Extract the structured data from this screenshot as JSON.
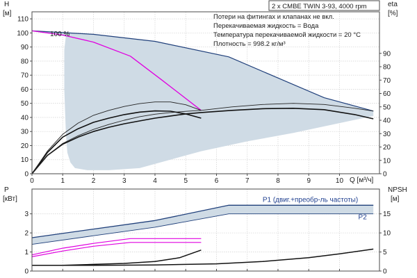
{
  "title": "2 x CMBE TWIN 3-93, 4000 rpm",
  "info": [
    "Потери на фитингах и клапанах не вкл.",
    "Перекачиваемая жидкость = Вода",
    "Температура перекачиваемой жидкости = 20 °C",
    "Плотность = 998.2 кг/м³"
  ],
  "colors": {
    "envelope_fill": "#cfdbe5",
    "envelope_edge": "#1f3f7a",
    "qh_curve": "#111111",
    "highlight": "#e000e0",
    "eta_curve": "#222222",
    "series_label": "#1f3f8f"
  },
  "chart_data": [
    {
      "type": "line",
      "name": "QH",
      "ylabel": "H",
      "yunit": "[м]",
      "y2label": "eta",
      "y2unit": "[%]",
      "xlabel": "Q [м³/ч]",
      "xlim": [
        0,
        11.3
      ],
      "ylim": [
        0,
        115
      ],
      "yticks": [
        0,
        10,
        20,
        30,
        40,
        50,
        60,
        70,
        80,
        90,
        100,
        110
      ],
      "y2ticks": [
        0,
        10,
        20,
        30,
        40,
        50,
        60,
        70,
        80,
        90
      ],
      "xticks": [
        0,
        1,
        2,
        3,
        4,
        5,
        6,
        7,
        8,
        9,
        10
      ],
      "grid": true,
      "annotation": "100 %",
      "envelope": {
        "upper": [
          [
            0,
            101.5
          ],
          [
            2,
            99
          ],
          [
            4,
            94
          ],
          [
            6.4,
            83
          ],
          [
            8,
            68
          ],
          [
            9.5,
            54
          ],
          [
            11.1,
            44.5
          ]
        ],
        "lower": [
          [
            11.1,
            41
          ],
          [
            10,
            36
          ],
          [
            8.5,
            29
          ],
          [
            7,
            23
          ],
          [
            5.5,
            16
          ],
          [
            4.5,
            10
          ],
          [
            3.5,
            4
          ],
          [
            2.5,
            2.5
          ],
          [
            1.8,
            2.5
          ],
          [
            1.4,
            4
          ],
          [
            1.25,
            8
          ],
          [
            1.15,
            15
          ],
          [
            1.1,
            30
          ],
          [
            1.05,
            60
          ],
          [
            1.05,
            88
          ],
          [
            1.1,
            97.5
          ],
          [
            0,
            101.5
          ]
        ]
      },
      "lines": [
        {
          "points": [
            [
              0,
              101.5
            ],
            [
              1,
              98.5
            ],
            [
              2,
              93.5
            ],
            [
              3.2,
              83.5
            ],
            [
              4.2,
              67
            ],
            [
              5.5,
              45
            ]
          ],
          "style": "highlight"
        },
        {
          "points": [
            [
              0,
              0
            ],
            [
              0.5,
              13
            ],
            [
              1,
              21
            ],
            [
              1.5,
              26
            ],
            [
              2,
              30
            ],
            [
              2.5,
              33
            ],
            [
              3,
              35.5
            ],
            [
              3.5,
              37.5
            ],
            [
              4,
              39.5
            ],
            [
              4.5,
              41
            ],
            [
              5,
              42.5
            ],
            [
              5.5,
              43.5
            ],
            [
              6.5,
              45
            ],
            [
              7.5,
              46.2
            ],
            [
              8.5,
              46.5
            ],
            [
              9.5,
              45.5
            ],
            [
              10.5,
              42
            ],
            [
              11.1,
              39
            ]
          ],
          "style": "bold"
        },
        {
          "points": [
            [
              0,
              0
            ],
            [
              0.5,
              15
            ],
            [
              1,
              26
            ],
            [
              1.5,
              32
            ],
            [
              2,
              36.5
            ],
            [
              2.5,
              39.5
            ],
            [
              3,
              42
            ],
            [
              3.5,
              43.8
            ],
            [
              4,
              44.6
            ],
            [
              4.5,
              44.4
            ],
            [
              5,
              42.5
            ],
            [
              5.5,
              39.5
            ]
          ],
          "style": "bold"
        },
        {
          "points": [
            [
              0,
              0
            ],
            [
              0.5,
              13
            ],
            [
              1,
              21.5
            ],
            [
              1.5,
              27
            ],
            [
              2,
              31.5
            ],
            [
              2.5,
              35
            ],
            [
              3,
              38
            ],
            [
              3.5,
              40.5
            ],
            [
              4,
              42.3
            ],
            [
              4.5,
              43.5
            ],
            [
              5,
              44.3
            ],
            [
              5.5,
              45
            ],
            [
              6.5,
              47.5
            ],
            [
              7.5,
              49.2
            ],
            [
              8.5,
              50
            ],
            [
              9.5,
              49.2
            ],
            [
              10.5,
              46.5
            ],
            [
              11.1,
              44.5
            ]
          ],
          "style": "thin"
        },
        {
          "points": [
            [
              0,
              0
            ],
            [
              0.5,
              16
            ],
            [
              1,
              28
            ],
            [
              1.5,
              36
            ],
            [
              2,
              41.5
            ],
            [
              2.5,
              45
            ],
            [
              3,
              47.8
            ],
            [
              3.5,
              49.8
            ],
            [
              4,
              51
            ],
            [
              4.5,
              51
            ],
            [
              5,
              49
            ],
            [
              5.5,
              45
            ]
          ],
          "style": "thin"
        }
      ]
    },
    {
      "type": "line",
      "name": "P-NPSH",
      "ylabel": "P",
      "yunit": "[кВт]",
      "y2label": "NPSH",
      "y2unit": "[м]",
      "xlim": [
        0,
        11.3
      ],
      "ylim": [
        0,
        4.3
      ],
      "yticks": [
        0,
        1,
        2,
        3
      ],
      "y2ticks": [
        0,
        5,
        10,
        15
      ],
      "y2lim": [
        0,
        21.5
      ],
      "grid": true,
      "series_labels": [
        {
          "text": "P1 (двиг.+преобр-ль частоты)",
          "x": 7.5,
          "y": 3.62
        },
        {
          "text": "P2",
          "x": 10.75,
          "y": 2.72
        }
      ],
      "lines": [
        {
          "points": [
            [
              0,
              1.75
            ],
            [
              2,
              2.2
            ],
            [
              4,
              2.65
            ],
            [
              6.4,
              3.45
            ],
            [
              8,
              3.45
            ],
            [
              11.1,
              3.45
            ]
          ],
          "style": "envelope"
        },
        {
          "points": [
            [
              0,
              1.4
            ],
            [
              2,
              1.85
            ],
            [
              4,
              2.3
            ],
            [
              6.4,
              3.0
            ],
            [
              8,
              3.0
            ],
            [
              11.1,
              3.0
            ]
          ],
          "style": "envelope_thin"
        },
        {
          "points": [
            [
              0,
              0.85
            ],
            [
              1,
              1.2
            ],
            [
              2,
              1.45
            ],
            [
              3.2,
              1.7
            ],
            [
              5.5,
              1.7
            ]
          ],
          "style": "highlight"
        },
        {
          "points": [
            [
              0,
              0.75
            ],
            [
              1,
              1.05
            ],
            [
              2,
              1.3
            ],
            [
              3.2,
              1.5
            ],
            [
              5.5,
              1.5
            ]
          ],
          "style": "highlight"
        },
        {
          "points": [
            [
              0,
              0.3
            ],
            [
              1,
              0.3
            ],
            [
              2,
              0.35
            ],
            [
              3,
              0.4
            ],
            [
              4,
              0.5
            ],
            [
              4.8,
              0.7
            ],
            [
              5.5,
              1.1
            ]
          ],
          "style": "bold"
        },
        {
          "points": [
            [
              0,
              0.3
            ],
            [
              2,
              0.3
            ],
            [
              4,
              0.32
            ],
            [
              6,
              0.38
            ],
            [
              7.5,
              0.5
            ],
            [
              9,
              0.7
            ],
            [
              10,
              0.9
            ],
            [
              11.1,
              1.15
            ]
          ],
          "style": "bold"
        }
      ]
    }
  ]
}
